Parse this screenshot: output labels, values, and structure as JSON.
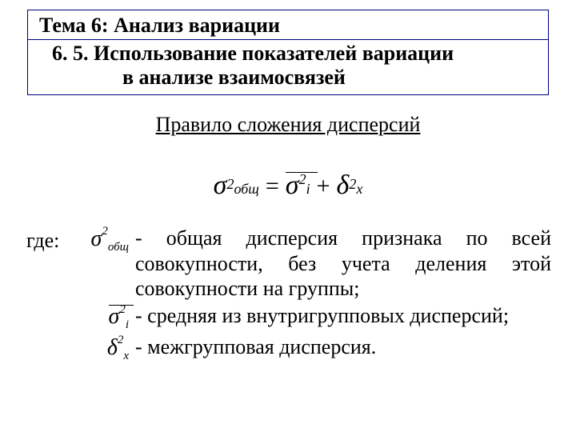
{
  "title": {
    "line1": "Тема 6: Анализ вариации",
    "line2": "6. 5. Использование показателей вариации",
    "line3": "в анализе взаимосвязей"
  },
  "subtitle": "Правило сложения дисперсий",
  "formula": {
    "lhs_sym": "σ",
    "lhs_sup": "2",
    "lhs_sub": "общ",
    "eq": "=",
    "t1_sym": "σ",
    "t1_sup": "2",
    "t1_sub": "i",
    "plus": "+",
    "t2_sym": "δ",
    "t2_sup": "2",
    "t2_sub": "x"
  },
  "where": "где:",
  "defs": [
    {
      "symbol": {
        "base": "σ",
        "sup": "2",
        "sub": "общ",
        "overbar": false
      },
      "text": "- общая дисперсия признака по всей совокупности, без учета деления этой совокупности на группы;"
    },
    {
      "symbol": {
        "base": "σ",
        "sup": "2",
        "sub": "i",
        "overbar": true
      },
      "text": "- средняя из внутригрупповых дисперсий;"
    },
    {
      "symbol": {
        "base": "δ",
        "sup": "2",
        "sub": "x",
        "overbar": false
      },
      "text": "- межгрупповая дисперсия."
    }
  ],
  "colors": {
    "border": "#000080",
    "text": "#000000",
    "background": "#ffffff"
  }
}
